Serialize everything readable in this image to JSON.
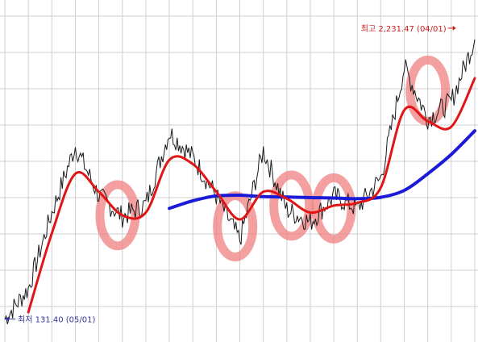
{
  "chart_data": {
    "type": "line",
    "title": "",
    "xlabel": "",
    "ylabel": "",
    "grid": true,
    "ylim": [
      0,
      2400
    ],
    "x": [
      0,
      5,
      10,
      15,
      20,
      25,
      30,
      35,
      40,
      45,
      50,
      55,
      60,
      65,
      70,
      75,
      80,
      85,
      90,
      95,
      100
    ],
    "series": [
      {
        "kind": "price",
        "values": [
          131,
          350,
          900,
          1380,
          1020,
          870,
          960,
          1480,
          1300,
          1020,
          700,
          1350,
          920,
          830,
          1020,
          930,
          1150,
          1950,
          1580,
          1700,
          2150
        ]
      },
      {
        "kind": "ma-short",
        "values": [
          null,
          180,
          750,
          1180,
          1050,
          880,
          900,
          1280,
          1250,
          1050,
          850,
          1050,
          1000,
          900,
          950,
          970,
          1080,
          1640,
          1560,
          1520,
          1870
        ]
      },
      {
        "kind": "ma-long",
        "values": [
          null,
          null,
          null,
          null,
          null,
          null,
          null,
          930,
          985,
          1020,
          1025,
          1015,
          1012,
          1008,
          1005,
          1000,
          1010,
          1060,
          1180,
          1320,
          1490
        ]
      }
    ],
    "annotations": [
      {
        "text": "최고 2,231.47 (04/01)",
        "x": 96,
        "y": 2231.47,
        "kind": "high"
      },
      {
        "text": "최저 131.40 (05/01)",
        "x": 0,
        "y": 131.4,
        "kind": "low"
      }
    ],
    "highlights": [
      {
        "x": 24,
        "y": 880
      },
      {
        "x": 49,
        "y": 800
      },
      {
        "x": 61,
        "y": 950
      },
      {
        "x": 70,
        "y": 930
      },
      {
        "x": 90,
        "y": 1780
      }
    ]
  },
  "colors": {
    "price": "#1a1a1a",
    "ma_short": "#e01515",
    "ma_long": "#1a1ad8",
    "highlight": "#f08080",
    "annotation": "#cc1a1a",
    "low_annotation": "#333399",
    "grid": "#cfcfcf"
  }
}
